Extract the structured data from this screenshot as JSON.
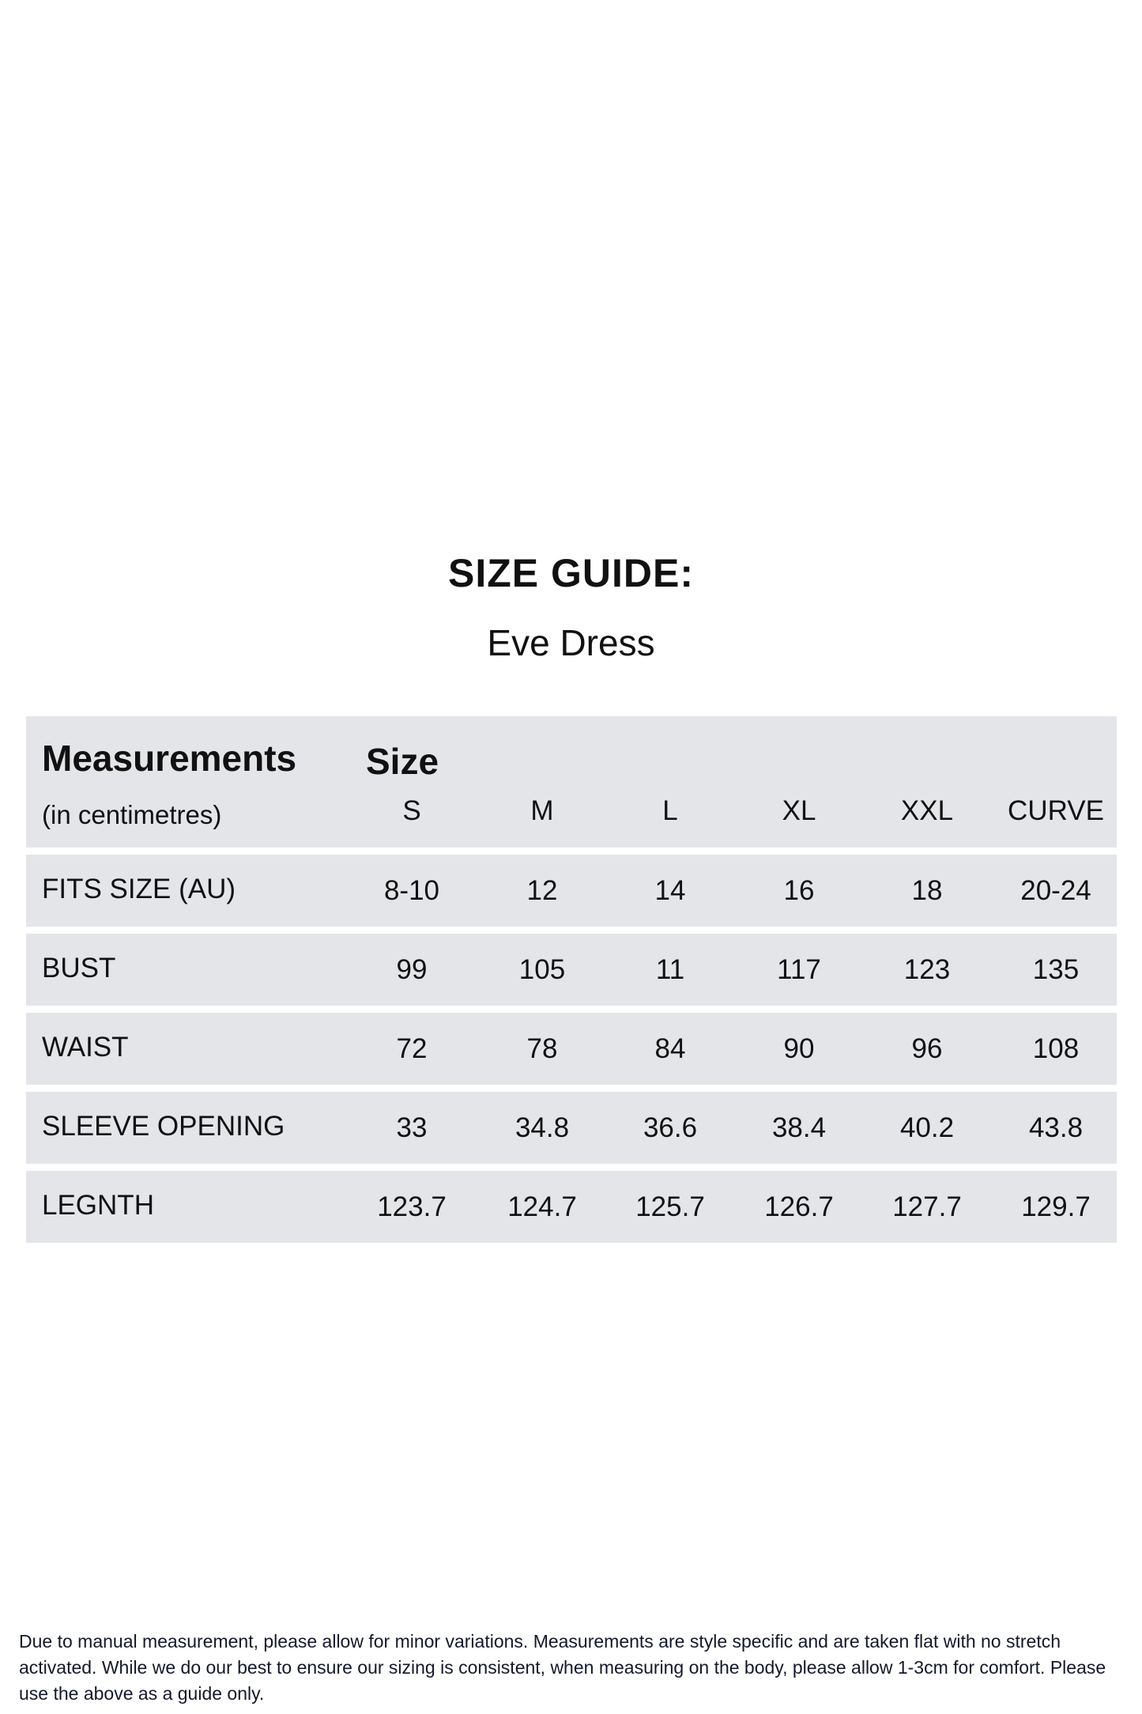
{
  "title": "SIZE GUIDE:",
  "subtitle": "Eve Dress",
  "table": {
    "heading": "Measurements",
    "unit_note": "(in centimetres)",
    "size_heading": "Size",
    "sizes": [
      "S",
      "M",
      "L",
      "XL",
      "XXL",
      "CURVE"
    ],
    "rows": [
      {
        "label": "FITS SIZE (AU)",
        "values": [
          "8-10",
          "12",
          "14",
          "16",
          "18",
          "20-24"
        ]
      },
      {
        "label": "BUST",
        "values": [
          "99",
          "105",
          "11",
          "117",
          "123",
          "135"
        ]
      },
      {
        "label": "WAIST",
        "values": [
          "72",
          "78",
          "84",
          "90",
          "96",
          "108"
        ]
      },
      {
        "label": "SLEEVE OPENING",
        "values": [
          "33",
          "34.8",
          "36.6",
          "38.4",
          "40.2",
          "43.8"
        ]
      },
      {
        "label": "LEGNTH",
        "values": [
          "123.7",
          "124.7",
          "125.7",
          "126.7",
          "127.7",
          "129.7"
        ]
      }
    ]
  },
  "footnote": "Due to manual measurement, please allow for minor variations. Measurements are style specific and are taken flat with no stretch activated. While we do our best to ensure our sizing is consistent, when measuring on the body, please allow 1-3cm for comfort. Please use the above as a guide only.",
  "colors": {
    "row_bg": "#e4e5e9",
    "text": "#111111"
  }
}
